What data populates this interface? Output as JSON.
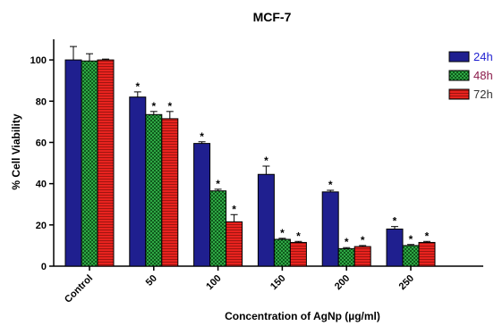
{
  "chart_data": {
    "type": "bar",
    "title": "MCF-7",
    "xlabel": "Concentration of AgNp (µg/ml)",
    "ylabel": "% Cell Viability",
    "ylim": [
      0,
      110
    ],
    "yticks": [
      0,
      20,
      40,
      60,
      80,
      100
    ],
    "grid": false,
    "legend_position": "top-right",
    "categories": [
      "Control",
      "50",
      "100",
      "150",
      "200",
      "250"
    ],
    "series": [
      {
        "name": "24h",
        "color": "#1f1f8f",
        "pattern": "solid",
        "label_color": "#1f1fd0",
        "values": [
          100,
          82,
          59.5,
          44.5,
          36,
          18
        ],
        "errors": [
          6.5,
          2.5,
          0.8,
          4,
          0.8,
          1.2
        ],
        "significant": [
          false,
          true,
          true,
          true,
          true,
          true
        ]
      },
      {
        "name": "48h",
        "color": "#1f8f2f",
        "pattern": "checker",
        "label_color": "#8b1a4a",
        "values": [
          99.5,
          73.5,
          36.5,
          13,
          8.5,
          10
        ],
        "errors": [
          3.5,
          1.5,
          0.8,
          0.5,
          0.5,
          0.5
        ],
        "significant": [
          false,
          true,
          true,
          true,
          true,
          true
        ]
      },
      {
        "name": "72h",
        "color": "#e8231f",
        "pattern": "stripes",
        "label_color": "#333333",
        "values": [
          100,
          71.5,
          21.5,
          11.5,
          9.5,
          11.5
        ],
        "errors": [
          0.4,
          3.5,
          3.5,
          0.5,
          0.5,
          0.5
        ],
        "significant": [
          false,
          true,
          true,
          true,
          true,
          true
        ]
      }
    ],
    "annotation_symbol": "*"
  }
}
